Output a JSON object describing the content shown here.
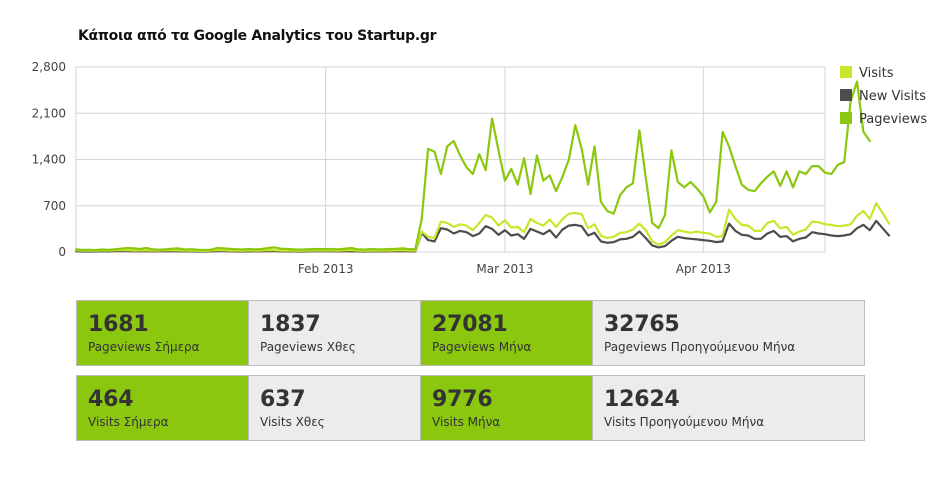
{
  "page": {
    "title": "Κάποια από τα Google Analytics του Startup.gr"
  },
  "chart_data": {
    "type": "line",
    "title": "Κάποια από τα Google Analytics του Startup.gr",
    "xlabel": "",
    "ylabel": "",
    "ylim": [
      0,
      2800
    ],
    "yticks": [
      0,
      700,
      1400,
      2100,
      2800
    ],
    "ytick_labels": [
      "0",
      "700",
      "1,400",
      "2,100",
      "2,800"
    ],
    "x_start": "2012-12-24",
    "x_count": 118,
    "xticks": [
      {
        "index": 39,
        "label": "Feb 2013"
      },
      {
        "index": 67,
        "label": "Mar 2013"
      },
      {
        "index": 98,
        "label": "Apr 2013"
      }
    ],
    "grid": true,
    "legend_position": "right",
    "series": [
      {
        "name": "Visits",
        "color": "#c8e62a",
        "values": [
          25,
          20,
          22,
          18,
          24,
          20,
          26,
          30,
          28,
          22,
          24,
          26,
          20,
          22,
          25,
          28,
          24,
          20,
          22,
          18,
          16,
          20,
          30,
          26,
          22,
          20,
          18,
          24,
          20,
          22,
          30,
          28,
          20,
          22,
          20,
          18,
          20,
          22,
          24,
          22,
          22,
          20,
          25,
          30,
          20,
          18,
          22,
          20,
          20,
          22,
          24,
          28,
          22,
          20,
          310,
          230,
          210,
          460,
          440,
          380,
          420,
          400,
          330,
          440,
          560,
          520,
          400,
          480,
          370,
          380,
          300,
          500,
          440,
          400,
          490,
          380,
          500,
          580,
          590,
          570,
          360,
          420,
          250,
          210,
          230,
          290,
          300,
          340,
          430,
          330,
          160,
          110,
          150,
          250,
          330,
          310,
          290,
          310,
          290,
          280,
          230,
          240,
          640,
          500,
          410,
          400,
          320,
          320,
          440,
          470,
          360,
          380,
          260,
          310,
          340,
          460,
          450,
          420,
          410,
          390,
          400,
          420,
          550,
          620,
          500,
          740,
          590,
          430
        ]
      },
      {
        "name": "New Visits",
        "color": "#4d4d4d",
        "values": [
          10,
          8,
          9,
          7,
          10,
          8,
          12,
          14,
          13,
          10,
          11,
          12,
          9,
          10,
          11,
          13,
          11,
          9,
          10,
          8,
          7,
          9,
          14,
          12,
          10,
          9,
          8,
          11,
          9,
          10,
          14,
          13,
          9,
          10,
          9,
          8,
          9,
          10,
          11,
          10,
          10,
          9,
          11,
          14,
          9,
          8,
          10,
          9,
          9,
          10,
          11,
          13,
          10,
          9,
          290,
          180,
          160,
          360,
          340,
          280,
          320,
          300,
          240,
          280,
          390,
          350,
          260,
          330,
          250,
          270,
          200,
          350,
          310,
          270,
          330,
          220,
          340,
          400,
          410,
          390,
          250,
          290,
          160,
          140,
          150,
          190,
          200,
          230,
          310,
          210,
          100,
          70,
          90,
          170,
          230,
          210,
          200,
          190,
          180,
          170,
          150,
          160,
          430,
          320,
          260,
          250,
          200,
          200,
          280,
          320,
          230,
          240,
          160,
          200,
          220,
          300,
          280,
          270,
          250,
          240,
          250,
          270,
          360,
          410,
          330,
          470,
          360,
          250
        ]
      },
      {
        "name": "Pageviews",
        "color": "#8cc70f",
        "values": [
          40,
          30,
          35,
          28,
          38,
          32,
          40,
          50,
          60,
          55,
          45,
          60,
          40,
          35,
          40,
          50,
          55,
          38,
          42,
          35,
          30,
          32,
          60,
          55,
          48,
          42,
          38,
          46,
          40,
          44,
          60,
          70,
          50,
          45,
          40,
          36,
          40,
          44,
          46,
          44,
          45,
          40,
          50,
          60,
          40,
          36,
          44,
          40,
          40,
          46,
          48,
          55,
          44,
          42,
          500,
          1560,
          1520,
          1180,
          1600,
          1680,
          1460,
          1280,
          1180,
          1480,
          1240,
          2020,
          1540,
          1080,
          1260,
          1020,
          1420,
          880,
          1460,
          1080,
          1160,
          920,
          1140,
          1400,
          1920,
          1560,
          1020,
          1600,
          760,
          620,
          580,
          860,
          980,
          1040,
          1840,
          1120,
          440,
          360,
          560,
          1540,
          1060,
          980,
          1060,
          960,
          840,
          600,
          760,
          1820,
          1600,
          1300,
          1020,
          940,
          920,
          1040,
          1140,
          1220,
          1000,
          1220,
          980,
          1220,
          1180,
          1300,
          1300,
          1200,
          1180,
          1320,
          1360,
          2280,
          2580,
          1820,
          1680
        ]
      }
    ]
  },
  "stats": {
    "row1": [
      {
        "value": "1681",
        "label": "Pageviews Σήμερα"
      },
      {
        "value": "1837",
        "label": "Pageviews Χθες"
      },
      {
        "value": "27081",
        "label": "Pageviews Μήνα"
      },
      {
        "value": "32765",
        "label": "Pageviews Προηγούμενου Μήνα"
      }
    ],
    "row2": [
      {
        "value": "464",
        "label": "Visits Σήμερα"
      },
      {
        "value": "637",
        "label": "Visits Χθες"
      },
      {
        "value": "9776",
        "label": "Visits Μήνα"
      },
      {
        "value": "12624",
        "label": "Visits Προηγούμενου Μήνα"
      }
    ]
  }
}
